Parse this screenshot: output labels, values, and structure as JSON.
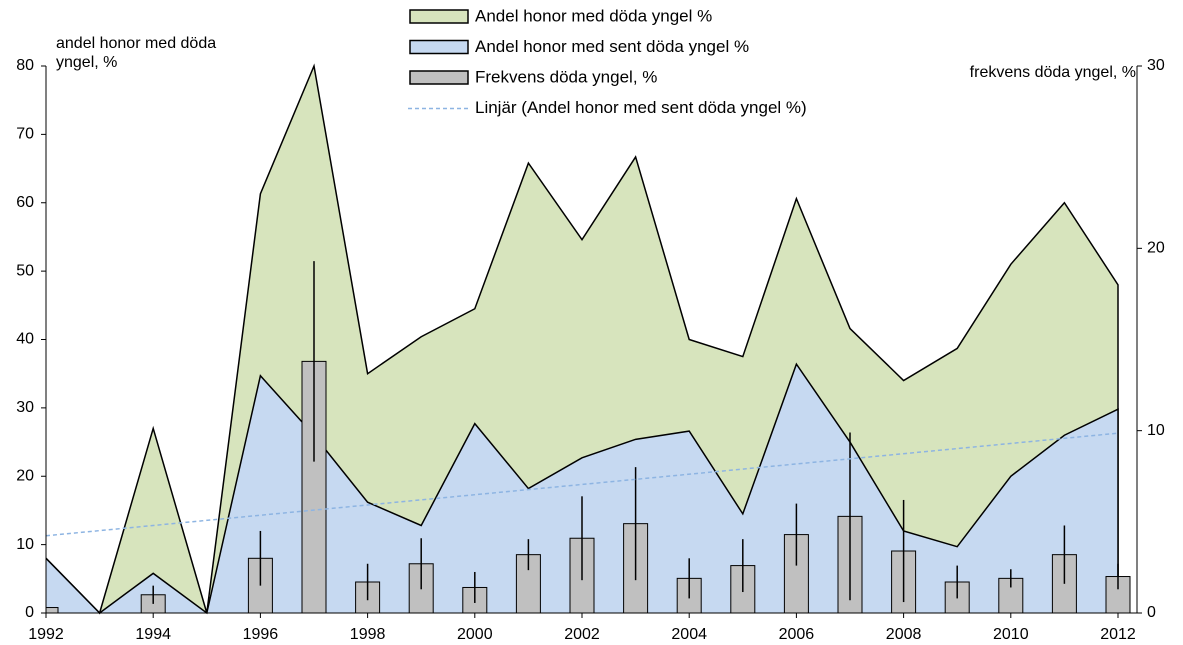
{
  "chart_data": {
    "type": "area",
    "x": [
      1992,
      1993,
      1994,
      1995,
      1996,
      1997,
      1998,
      1999,
      2000,
      2001,
      2002,
      2003,
      2004,
      2005,
      2006,
      2007,
      2008,
      2009,
      2010,
      2011,
      2012
    ],
    "xlim": [
      1992,
      2012
    ],
    "xticks": [
      1992,
      1994,
      1996,
      1998,
      2000,
      2002,
      2004,
      2006,
      2008,
      2010,
      2012
    ],
    "ylim": [
      0,
      80
    ],
    "yticks": [
      0,
      10,
      20,
      30,
      40,
      50,
      60,
      70,
      80
    ],
    "y2lim": [
      0,
      30
    ],
    "y2ticks": [
      0,
      10,
      20,
      30
    ],
    "ylabel": [
      "andel honor med döda",
      "yngel, %"
    ],
    "y2label": "frekvens döda yngel, %",
    "series": [
      {
        "name": "Andel honor med döda yngel %",
        "color": "#d7e4bd",
        "type": "area",
        "values": [
          8,
          0,
          27,
          0,
          61.3,
          80,
          35,
          40.4,
          44.5,
          65.8,
          54.6,
          66.7,
          40,
          37.5,
          60.6,
          41.6,
          34,
          38.7,
          51,
          60,
          48
        ]
      },
      {
        "name": "Andel honor med sent döda yngel %",
        "color": "#c6d9f1",
        "type": "area",
        "values": [
          8,
          0,
          5.8,
          0,
          34.7,
          26,
          16.2,
          12.8,
          27.7,
          18.2,
          22.7,
          25.4,
          26.6,
          14.5,
          36.4,
          25,
          12,
          9.7,
          20,
          26,
          29.8
        ]
      },
      {
        "name": "Frekvens döda yngel, %",
        "color": "#c0c0c0",
        "type": "bar",
        "axis": "y2",
        "values": [
          0.3,
          0,
          1,
          0,
          3,
          13.8,
          1.7,
          2.7,
          1.4,
          3.2,
          4.1,
          4.9,
          1.9,
          2.6,
          4.3,
          5.3,
          3.4,
          1.7,
          1.9,
          3.2,
          2
        ],
        "errors": [
          null,
          null,
          0.5,
          null,
          1.5,
          5.5,
          1,
          1.4,
          0.85,
          0.85,
          2.3,
          3.1,
          1.1,
          1.45,
          1.7,
          4.6,
          2.8,
          0.9,
          0.5,
          1.6,
          0.7
        ]
      },
      {
        "name": "Linjär (Andel honor med sent döda yngel %)",
        "color": "#8db4e2",
        "type": "trend",
        "x": [
          1992,
          2012
        ],
        "values": [
          11.3,
          26.3
        ]
      }
    ]
  }
}
